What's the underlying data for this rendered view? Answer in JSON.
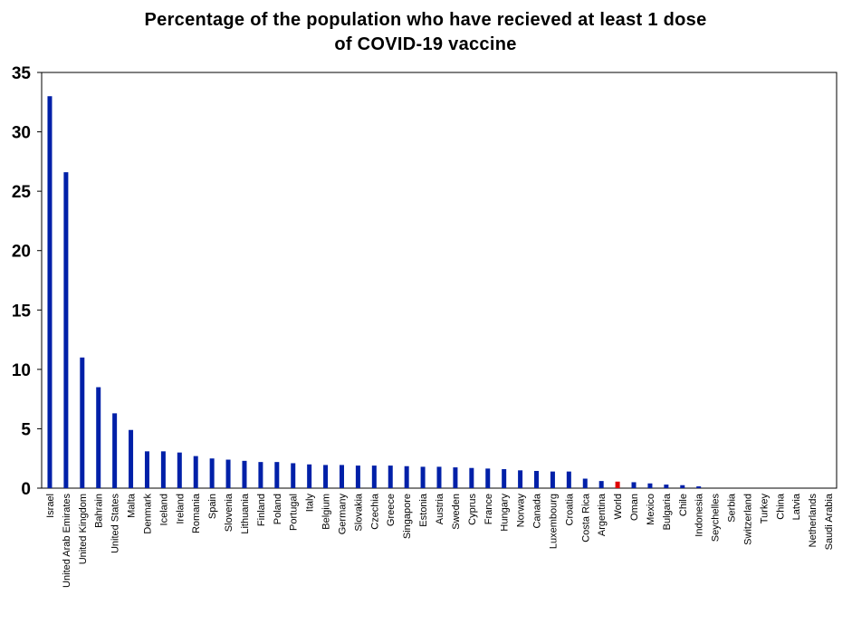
{
  "chart_data": {
    "type": "bar",
    "title_lines": [
      "Percentage of the population who have recieved at least 1 dose",
      "of COVID-19  vaccine"
    ],
    "xlabel": "",
    "ylabel": "",
    "ylim": [
      0,
      35
    ],
    "yticks": [
      "0",
      "5",
      "10",
      "15",
      "20",
      "25",
      "30",
      "35"
    ],
    "grid": false,
    "legend": "none",
    "bar_color": "#0020A8",
    "highlight_color": "#E00000",
    "highlight_category": "World",
    "categories": [
      "Israel",
      "United Arab Emirates",
      "United Kingdom",
      "Bahrain",
      "United States",
      "Malta",
      "Denmark",
      "Iceland",
      "Ireland",
      "Romania",
      "Spain",
      "Slovenia",
      "Lithuania",
      "Finland",
      "Poland",
      "Portugal",
      "Italy",
      "Belgium",
      "Germany",
      "Slovakia",
      "Czechia",
      "Greece",
      "Singapore",
      "Estonia",
      "Austria",
      "Sweden",
      "Cyprus",
      "France",
      "Hungary",
      "Norway",
      "Canada",
      "Luxembourg",
      "Croatia",
      "Costa Rica",
      "Argentina",
      "World",
      "Oman",
      "Mexico",
      "Bulgaria",
      "Chile",
      "Indonesia",
      "Seychelles",
      "Serbia",
      "Switzerland",
      "Turkey",
      "China",
      "Latvia",
      "Netherlands",
      "Saudi Arabia"
    ],
    "values": [
      33.0,
      26.6,
      11.0,
      8.5,
      6.3,
      4.9,
      3.1,
      3.1,
      3.0,
      2.7,
      2.5,
      2.4,
      2.3,
      2.2,
      2.2,
      2.1,
      2.0,
      1.95,
      1.95,
      1.9,
      1.9,
      1.9,
      1.85,
      1.8,
      1.8,
      1.75,
      1.7,
      1.65,
      1.6,
      1.5,
      1.45,
      1.4,
      1.4,
      0.8,
      0.6,
      0.55,
      0.5,
      0.4,
      0.3,
      0.25,
      0.15,
      0,
      0,
      0,
      0,
      0,
      0,
      0,
      0
    ]
  }
}
